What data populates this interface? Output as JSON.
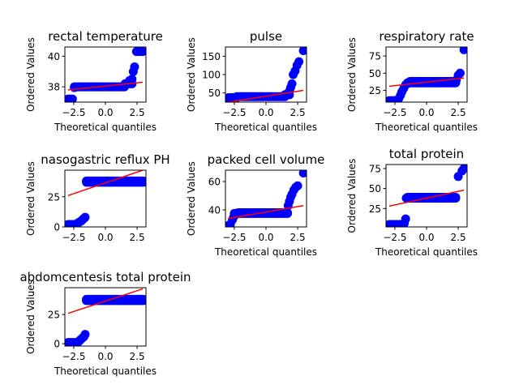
{
  "chart_data": [
    {
      "type": "scatter",
      "title": "rectal temperature",
      "xlabel": "Theoretical quantiles",
      "ylabel": "Ordered Values",
      "xlim": [
        -3.2,
        3.2
      ],
      "ylim": [
        37.0,
        40.6
      ],
      "xticks": [
        -2.5,
        0.0,
        2.5
      ],
      "xtick_labels": [
        "−2.5",
        "0.0",
        "2.5"
      ],
      "yticks": [
        38,
        40
      ],
      "ytick_labels": [
        "38",
        "40"
      ],
      "marker_color": "#0000ff",
      "fit_color": "#ff0000",
      "fit_line": {
        "x": [
          -2.95,
          2.95
        ],
        "y": [
          37.8,
          38.3
        ]
      },
      "steps": [
        {
          "x0": -2.95,
          "x1": -2.6,
          "y": 37.2
        },
        {
          "x0": -2.45,
          "x1": 1.5,
          "y": 38.0
        },
        {
          "x0": 1.55,
          "x1": 2.1,
          "y": 38.2
        }
      ],
      "points": [
        [
          -2.45,
          37.95
        ],
        [
          1.5,
          38.0
        ],
        [
          1.55,
          38.1
        ],
        [
          1.9,
          38.4
        ],
        [
          2.1,
          38.5
        ],
        [
          2.2,
          39.0
        ],
        [
          2.3,
          39.3
        ],
        [
          2.45,
          40.3
        ],
        [
          2.6,
          40.3
        ],
        [
          2.8,
          40.3
        ],
        [
          2.95,
          40.3
        ]
      ]
    },
    {
      "type": "scatter",
      "title": "pulse",
      "xlabel": "Theoretical quantiles",
      "ylabel": "Ordered Values",
      "xlim": [
        -3.2,
        3.2
      ],
      "ylim": [
        25,
        175
      ],
      "xticks": [
        -2.5,
        0.0,
        2.5
      ],
      "xtick_labels": [
        "−2.5",
        "0.0",
        "2.5"
      ],
      "yticks": [
        50,
        100,
        150
      ],
      "ytick_labels": [
        "50",
        "100",
        "150"
      ],
      "marker_color": "#0000ff",
      "fit_color": "#ff0000",
      "fit_line": {
        "x": [
          -2.95,
          2.95
        ],
        "y": [
          25,
          57
        ]
      },
      "steps": [
        {
          "x0": -2.95,
          "x1": -2.3,
          "y": 37
        },
        {
          "x0": -2.3,
          "x1": 1.5,
          "y": 40
        },
        {
          "x0": 1.5,
          "x1": 1.85,
          "y": 45
        }
      ],
      "points": [
        [
          -2.95,
          35
        ],
        [
          1.5,
          42
        ],
        [
          1.7,
          48
        ],
        [
          1.85,
          55
        ],
        [
          1.95,
          65
        ],
        [
          2.05,
          75
        ],
        [
          2.15,
          100
        ],
        [
          2.3,
          110
        ],
        [
          2.45,
          125
        ],
        [
          2.6,
          135
        ],
        [
          2.95,
          165
        ]
      ]
    },
    {
      "type": "scatter",
      "title": "respiratory rate",
      "xlabel": "Theoretical quantiles",
      "ylabel": "Ordered Values",
      "xlim": [
        -3.2,
        3.2
      ],
      "ylim": [
        8,
        88
      ],
      "xticks": [
        -2.5,
        0.0,
        2.5
      ],
      "xtick_labels": [
        "−2.5",
        "0.0",
        "2.5"
      ],
      "yticks": [
        25,
        50,
        75
      ],
      "ytick_labels": [
        "25",
        "50",
        "75"
      ],
      "marker_color": "#0000ff",
      "fit_color": "#ff0000",
      "fit_line": {
        "x": [
          -2.95,
          2.95
        ],
        "y": [
          31,
          43
        ]
      },
      "steps": [
        {
          "x0": -2.95,
          "x1": -2.4,
          "y": 10
        },
        {
          "x0": -1.5,
          "x1": 2.3,
          "y": 36
        },
        {
          "x0": -1.3,
          "x1": 2.3,
          "y": 38
        }
      ],
      "points": [
        [
          -2.2,
          13
        ],
        [
          -2.05,
          18
        ],
        [
          -1.95,
          23
        ],
        [
          -1.8,
          28
        ],
        [
          -1.65,
          33
        ],
        [
          -1.5,
          35
        ],
        [
          2.35,
          40
        ],
        [
          2.5,
          47
        ],
        [
          2.65,
          50
        ],
        [
          2.95,
          84
        ]
      ]
    },
    {
      "type": "scatter",
      "title": "nasogastric reflux PH",
      "xlabel": "",
      "ylabel": "Ordered Values",
      "xlim": [
        -3.2,
        3.2
      ],
      "ylim": [
        0,
        47
      ],
      "xticks": [
        -2.5,
        0.0,
        2.5
      ],
      "xtick_labels": [
        "−2.5",
        "0.0",
        "2.5"
      ],
      "yticks": [
        0,
        25
      ],
      "ytick_labels": [
        "0",
        "25"
      ],
      "marker_color": "#0000ff",
      "fit_color": "#ff0000",
      "fit_line": {
        "x": [
          -2.95,
          2.95
        ],
        "y": [
          26,
          47
        ]
      },
      "steps": [
        {
          "x0": -2.95,
          "x1": -2.3,
          "y": 2
        },
        {
          "x0": -1.5,
          "x1": 3.0,
          "y": 37
        },
        {
          "x0": -1.5,
          "x1": 3.0,
          "y": 38
        }
      ],
      "points": [
        [
          -2.2,
          3
        ],
        [
          -2.05,
          4
        ],
        [
          -1.9,
          5
        ],
        [
          -1.8,
          6
        ],
        [
          -1.7,
          7
        ],
        [
          -1.6,
          8
        ]
      ]
    },
    {
      "type": "scatter",
      "title": "packed cell volume",
      "xlabel": "Theoretical quantiles",
      "ylabel": "Ordered Values",
      "xlim": [
        -3.2,
        3.2
      ],
      "ylim": [
        28,
        68
      ],
      "xticks": [
        -2.5,
        0.0,
        2.5
      ],
      "xtick_labels": [
        "−2.5",
        "0.0",
        "2.5"
      ],
      "yticks": [
        40,
        60
      ],
      "ytick_labels": [
        "40",
        "60"
      ],
      "marker_color": "#0000ff",
      "fit_color": "#ff0000",
      "fit_line": {
        "x": [
          -2.95,
          2.95
        ],
        "y": [
          34,
          43
        ]
      },
      "steps": [
        {
          "x0": -2.5,
          "x1": 1.7,
          "y": 37.5
        },
        {
          "x0": -2.2,
          "x1": 1.7,
          "y": 38.0
        }
      ],
      "points": [
        [
          -2.95,
          29
        ],
        [
          -2.8,
          30
        ],
        [
          -2.65,
          33
        ],
        [
          -2.55,
          35
        ],
        [
          1.75,
          43
        ],
        [
          1.85,
          46
        ],
        [
          1.95,
          49
        ],
        [
          2.05,
          51
        ],
        [
          2.2,
          54
        ],
        [
          2.35,
          56
        ],
        [
          2.5,
          57
        ],
        [
          2.95,
          66
        ]
      ]
    },
    {
      "type": "scatter",
      "title": "total protein",
      "xlabel": "Theoretical quantiles",
      "ylabel": "Ordered Values",
      "xlim": [
        -3.2,
        3.2
      ],
      "ylim": [
        2,
        80
      ],
      "xticks": [
        -2.5,
        0.0,
        2.5
      ],
      "xtick_labels": [
        "−2.5",
        "0.0",
        "2.5"
      ],
      "yticks": [
        25,
        50,
        75
      ],
      "ytick_labels": [
        "25",
        "50",
        "75"
      ],
      "marker_color": "#0000ff",
      "fit_color": "#ff0000",
      "fit_line": {
        "x": [
          -2.95,
          2.95
        ],
        "y": [
          28,
          48
        ]
      },
      "steps": [
        {
          "x0": -2.95,
          "x1": -1.8,
          "y": 5
        },
        {
          "x0": -1.6,
          "x1": 2.3,
          "y": 38
        },
        {
          "x0": -1.5,
          "x1": 2.3,
          "y": 39
        }
      ],
      "points": [
        [
          -1.75,
          7
        ],
        [
          -1.65,
          12
        ],
        [
          2.5,
          65
        ],
        [
          2.8,
          72
        ],
        [
          2.95,
          75
        ]
      ]
    },
    {
      "type": "scatter",
      "title": "abdomcentesis total protein",
      "xlabel": "Theoretical quantiles",
      "ylabel": "Ordered Values",
      "xlim": [
        -3.2,
        3.2
      ],
      "ylim": [
        -2,
        48
      ],
      "xticks": [
        -2.5,
        0.0,
        2.5
      ],
      "xtick_labels": [
        "−2.5",
        "0.0",
        "2.5"
      ],
      "yticks": [
        0,
        25
      ],
      "ytick_labels": [
        "0",
        "25"
      ],
      "marker_color": "#0000ff",
      "fit_color": "#ff0000",
      "fit_line": {
        "x": [
          -2.95,
          2.95
        ],
        "y": [
          26,
          47
        ]
      },
      "steps": [
        {
          "x0": -2.95,
          "x1": -2.2,
          "y": 1
        },
        {
          "x0": -1.5,
          "x1": 3.0,
          "y": 37
        },
        {
          "x0": -1.5,
          "x1": 3.0,
          "y": 38
        }
      ],
      "points": [
        [
          -2.1,
          2
        ],
        [
          -2.0,
          3
        ],
        [
          -1.9,
          4
        ],
        [
          -1.8,
          5
        ],
        [
          -1.7,
          6
        ],
        [
          -1.6,
          8
        ]
      ]
    }
  ]
}
